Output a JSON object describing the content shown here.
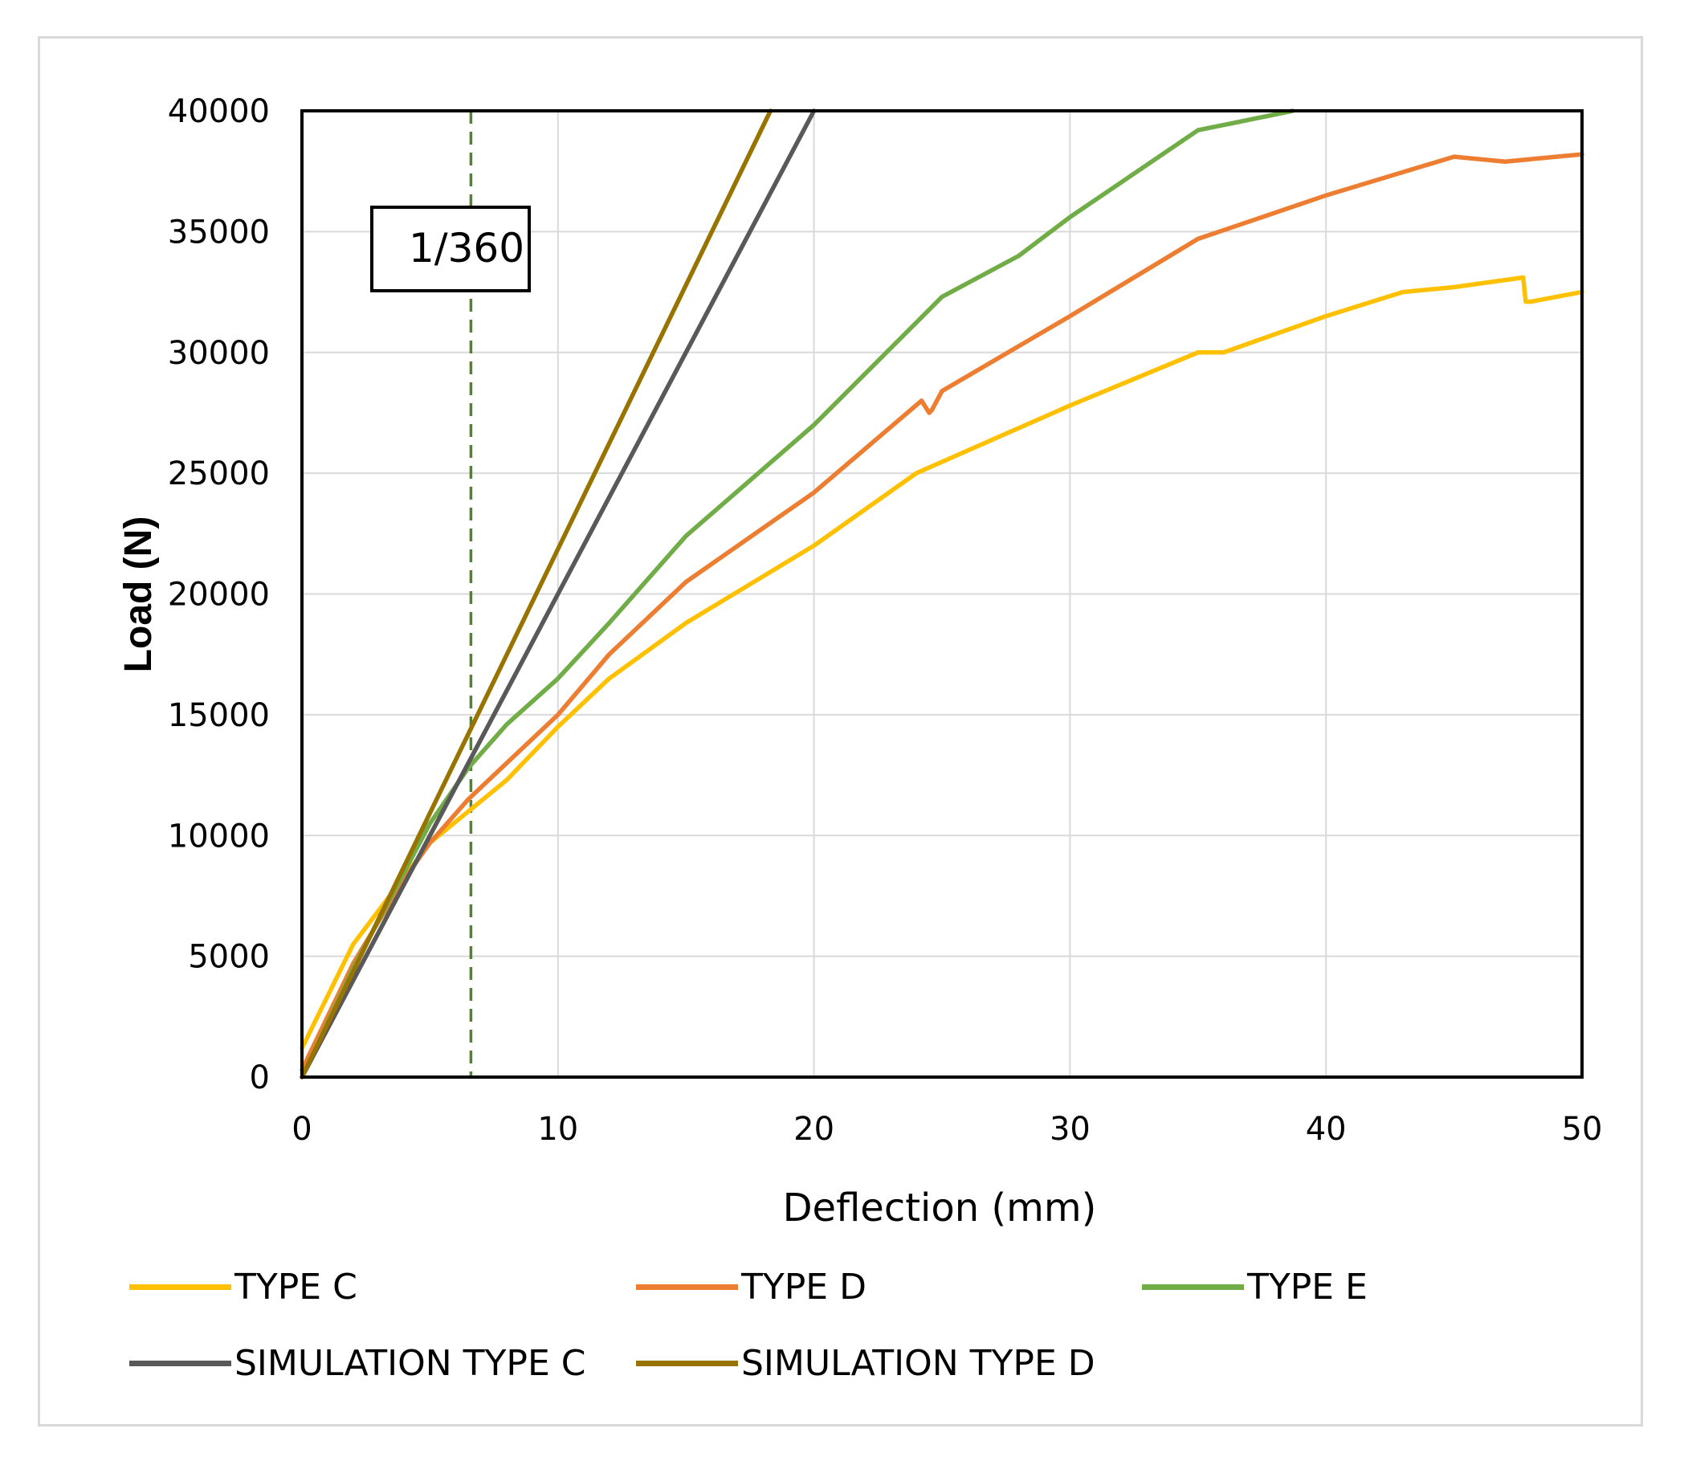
{
  "chart_data": {
    "type": "line",
    "xlabel": "Deflection (mm)",
    "ylabel": "Load (N)",
    "xlim": [
      0,
      50
    ],
    "ylim": [
      0,
      40000
    ],
    "xticks": [
      0,
      10,
      20,
      30,
      40,
      50
    ],
    "yticks": [
      0,
      5000,
      10000,
      15000,
      20000,
      25000,
      30000,
      35000,
      40000
    ],
    "grid": true,
    "legend_position": "bottom",
    "annotation": {
      "text": "1/360",
      "x": 6.6
    },
    "series": [
      {
        "name": "TYPE C",
        "color": "#ffc000",
        "x": [
          0,
          2,
          4,
          5,
          6.5,
          8,
          10,
          12,
          15,
          20,
          24,
          30,
          35,
          36,
          40,
          43,
          45,
          47.7,
          47.8,
          48,
          50
        ],
        "y": [
          1200,
          5500,
          8300,
          9700,
          11000,
          12300,
          14500,
          16500,
          18800,
          22000,
          25000,
          27800,
          30000,
          30000,
          31500,
          32500,
          32700,
          33100,
          32100,
          32100,
          32500
        ]
      },
      {
        "name": "TYPE D",
        "color": "#ed7d31",
        "x": [
          0,
          2,
          4,
          5,
          6.5,
          8,
          10,
          12,
          15,
          20,
          24.2,
          24.5,
          24.6,
          25,
          30,
          35,
          40,
          45,
          47,
          50
        ],
        "y": [
          300,
          4700,
          8200,
          9700,
          11500,
          13000,
          15000,
          17500,
          20500,
          24200,
          28000,
          27500,
          27600,
          28400,
          31500,
          34700,
          36500,
          38100,
          37900,
          38200
        ]
      },
      {
        "name": "TYPE E",
        "color": "#70ad47",
        "x": [
          0,
          2,
          4,
          5,
          6.5,
          8,
          10,
          12,
          15,
          20,
          25,
          28,
          30,
          35,
          38.7
        ],
        "y": [
          0,
          4500,
          8500,
          10500,
          12800,
          14600,
          16500,
          18800,
          22400,
          27000,
          32300,
          34000,
          35600,
          39200,
          40000
        ]
      },
      {
        "name": "SIMULATION TYPE C",
        "color": "#595959",
        "x": [
          0,
          20
        ],
        "y": [
          0,
          40000
        ]
      },
      {
        "name": "SIMULATION TYPE D",
        "color": "#997300",
        "x": [
          0,
          18.3
        ],
        "y": [
          0,
          40000
        ]
      }
    ]
  }
}
